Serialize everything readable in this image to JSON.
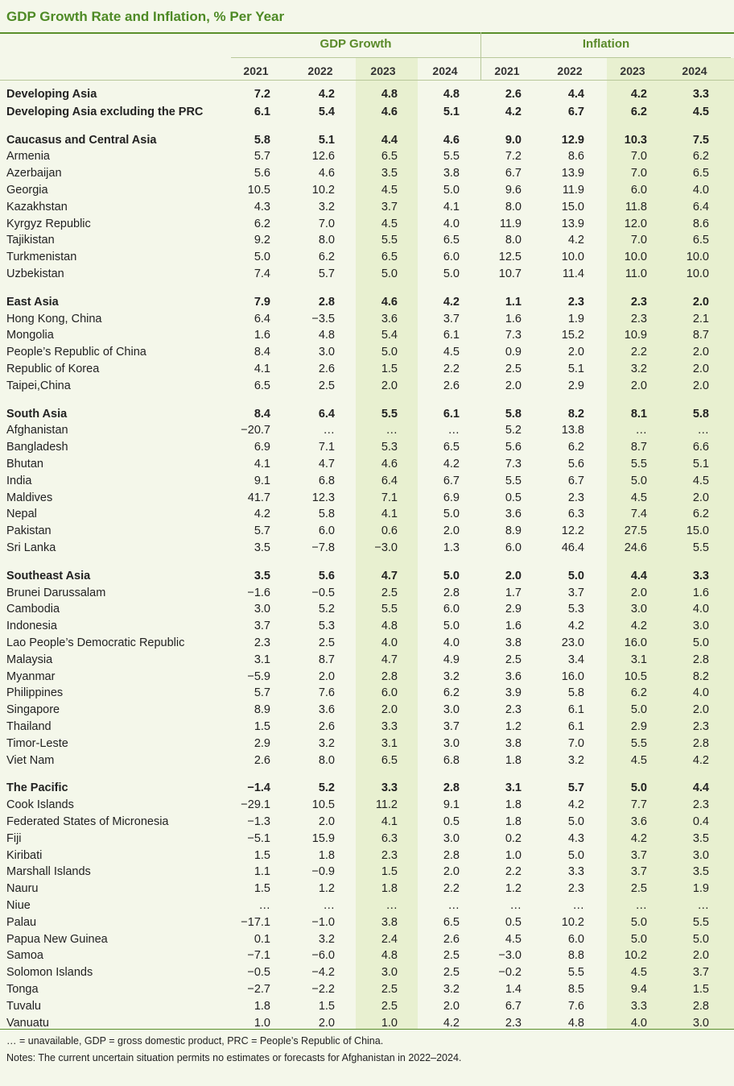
{
  "title": "GDP Growth Rate and Inflation, % Per Year",
  "groups": {
    "gdp": "GDP Growth",
    "inflation": "Inflation"
  },
  "years": [
    "2021",
    "2022",
    "2023",
    "2024",
    "2021",
    "2022",
    "2023",
    "2024"
  ],
  "rows": [
    {
      "name": "Developing Asia",
      "bold": true,
      "values": [
        "7.2",
        "4.2",
        "4.8",
        "4.8",
        "2.6",
        "4.4",
        "4.2",
        "3.3"
      ]
    },
    {
      "name": "Developing Asia excluding the PRC",
      "bold": true,
      "values": [
        "6.1",
        "5.4",
        "4.6",
        "5.1",
        "4.2",
        "6.7",
        "6.2",
        "4.5"
      ]
    },
    {
      "name": "Caucasus and Central Asia",
      "bold": true,
      "values": [
        "5.8",
        "5.1",
        "4.4",
        "4.6",
        "9.0",
        "12.9",
        "10.3",
        "7.5"
      ]
    },
    {
      "name": "Armenia",
      "values": [
        "5.7",
        "12.6",
        "6.5",
        "5.5",
        "7.2",
        "8.6",
        "7.0",
        "6.2"
      ]
    },
    {
      "name": "Azerbaijan",
      "values": [
        "5.6",
        "4.6",
        "3.5",
        "3.8",
        "6.7",
        "13.9",
        "7.0",
        "6.5"
      ]
    },
    {
      "name": "Georgia",
      "values": [
        "10.5",
        "10.2",
        "4.5",
        "5.0",
        "9.6",
        "11.9",
        "6.0",
        "4.0"
      ]
    },
    {
      "name": "Kazakhstan",
      "values": [
        "4.3",
        "3.2",
        "3.7",
        "4.1",
        "8.0",
        "15.0",
        "11.8",
        "6.4"
      ]
    },
    {
      "name": "Kyrgyz Republic",
      "values": [
        "6.2",
        "7.0",
        "4.5",
        "4.0",
        "11.9",
        "13.9",
        "12.0",
        "8.6"
      ]
    },
    {
      "name": "Tajikistan",
      "values": [
        "9.2",
        "8.0",
        "5.5",
        "6.5",
        "8.0",
        "4.2",
        "7.0",
        "6.5"
      ]
    },
    {
      "name": "Turkmenistan",
      "values": [
        "5.0",
        "6.2",
        "6.5",
        "6.0",
        "12.5",
        "10.0",
        "10.0",
        "10.0"
      ]
    },
    {
      "name": "Uzbekistan",
      "values": [
        "7.4",
        "5.7",
        "5.0",
        "5.0",
        "10.7",
        "11.4",
        "11.0",
        "10.0"
      ]
    },
    {
      "name": "East Asia",
      "bold": true,
      "values": [
        "7.9",
        "2.8",
        "4.6",
        "4.2",
        "1.1",
        "2.3",
        "2.3",
        "2.0"
      ]
    },
    {
      "name": "Hong Kong, China",
      "values": [
        "6.4",
        "−3.5",
        "3.6",
        "3.7",
        "1.6",
        "1.9",
        "2.3",
        "2.1"
      ]
    },
    {
      "name": "Mongolia",
      "values": [
        "1.6",
        "4.8",
        "5.4",
        "6.1",
        "7.3",
        "15.2",
        "10.9",
        "8.7"
      ]
    },
    {
      "name": "People’s Republic of China",
      "values": [
        "8.4",
        "3.0",
        "5.0",
        "4.5",
        "0.9",
        "2.0",
        "2.2",
        "2.0"
      ]
    },
    {
      "name": "Republic of Korea",
      "values": [
        "4.1",
        "2.6",
        "1.5",
        "2.2",
        "2.5",
        "5.1",
        "3.2",
        "2.0"
      ]
    },
    {
      "name": "Taipei,China",
      "values": [
        "6.5",
        "2.5",
        "2.0",
        "2.6",
        "2.0",
        "2.9",
        "2.0",
        "2.0"
      ]
    },
    {
      "name": "South Asia",
      "bold": true,
      "values": [
        "8.4",
        "6.4",
        "5.5",
        "6.1",
        "5.8",
        "8.2",
        "8.1",
        "5.8"
      ]
    },
    {
      "name": "Afghanistan",
      "values": [
        "−20.7",
        "…",
        "…",
        "…",
        "5.2",
        "13.8",
        "…",
        "…"
      ]
    },
    {
      "name": "Bangladesh",
      "values": [
        "6.9",
        "7.1",
        "5.3",
        "6.5",
        "5.6",
        "6.2",
        "8.7",
        "6.6"
      ]
    },
    {
      "name": "Bhutan",
      "values": [
        "4.1",
        "4.7",
        "4.6",
        "4.2",
        "7.3",
        "5.6",
        "5.5",
        "5.1"
      ]
    },
    {
      "name": "India",
      "values": [
        "9.1",
        "6.8",
        "6.4",
        "6.7",
        "5.5",
        "6.7",
        "5.0",
        "4.5"
      ]
    },
    {
      "name": "Maldives",
      "values": [
        "41.7",
        "12.3",
        "7.1",
        "6.9",
        "0.5",
        "2.3",
        "4.5",
        "2.0"
      ]
    },
    {
      "name": "Nepal",
      "values": [
        "4.2",
        "5.8",
        "4.1",
        "5.0",
        "3.6",
        "6.3",
        "7.4",
        "6.2"
      ]
    },
    {
      "name": "Pakistan",
      "values": [
        "5.7",
        "6.0",
        "0.6",
        "2.0",
        "8.9",
        "12.2",
        "27.5",
        "15.0"
      ]
    },
    {
      "name": "Sri Lanka",
      "values": [
        "3.5",
        "−7.8",
        "−3.0",
        "1.3",
        "6.0",
        "46.4",
        "24.6",
        "5.5"
      ]
    },
    {
      "name": "Southeast Asia",
      "bold": true,
      "values": [
        "3.5",
        "5.6",
        "4.7",
        "5.0",
        "2.0",
        "5.0",
        "4.4",
        "3.3"
      ]
    },
    {
      "name": "Brunei Darussalam",
      "values": [
        "−1.6",
        "−0.5",
        "2.5",
        "2.8",
        "1.7",
        "3.7",
        "2.0",
        "1.6"
      ]
    },
    {
      "name": "Cambodia",
      "values": [
        "3.0",
        "5.2",
        "5.5",
        "6.0",
        "2.9",
        "5.3",
        "3.0",
        "4.0"
      ]
    },
    {
      "name": "Indonesia",
      "values": [
        "3.7",
        "5.3",
        "4.8",
        "5.0",
        "1.6",
        "4.2",
        "4.2",
        "3.0"
      ]
    },
    {
      "name": "Lao People’s Democratic Republic",
      "values": [
        "2.3",
        "2.5",
        "4.0",
        "4.0",
        "3.8",
        "23.0",
        "16.0",
        "5.0"
      ]
    },
    {
      "name": "Malaysia",
      "values": [
        "3.1",
        "8.7",
        "4.7",
        "4.9",
        "2.5",
        "3.4",
        "3.1",
        "2.8"
      ]
    },
    {
      "name": "Myanmar",
      "values": [
        "−5.9",
        "2.0",
        "2.8",
        "3.2",
        "3.6",
        "16.0",
        "10.5",
        "8.2"
      ]
    },
    {
      "name": "Philippines",
      "values": [
        "5.7",
        "7.6",
        "6.0",
        "6.2",
        "3.9",
        "5.8",
        "6.2",
        "4.0"
      ]
    },
    {
      "name": "Singapore",
      "values": [
        "8.9",
        "3.6",
        "2.0",
        "3.0",
        "2.3",
        "6.1",
        "5.0",
        "2.0"
      ]
    },
    {
      "name": "Thailand",
      "values": [
        "1.5",
        "2.6",
        "3.3",
        "3.7",
        "1.2",
        "6.1",
        "2.9",
        "2.3"
      ]
    },
    {
      "name": "Timor-Leste",
      "values": [
        "2.9",
        "3.2",
        "3.1",
        "3.0",
        "3.8",
        "7.0",
        "5.5",
        "2.8"
      ]
    },
    {
      "name": "Viet Nam",
      "values": [
        "2.6",
        "8.0",
        "6.5",
        "6.8",
        "1.8",
        "3.2",
        "4.5",
        "4.2"
      ]
    },
    {
      "name": "The Pacific",
      "bold": true,
      "values": [
        "−1.4",
        "5.2",
        "3.3",
        "2.8",
        "3.1",
        "5.7",
        "5.0",
        "4.4"
      ]
    },
    {
      "name": "Cook Islands",
      "values": [
        "−29.1",
        "10.5",
        "11.2",
        "9.1",
        "1.8",
        "4.2",
        "7.7",
        "2.3"
      ]
    },
    {
      "name": "Federated States of Micronesia",
      "values": [
        "−1.3",
        "2.0",
        "4.1",
        "0.5",
        "1.8",
        "5.0",
        "3.6",
        "0.4"
      ]
    },
    {
      "name": "Fiji",
      "values": [
        "−5.1",
        "15.9",
        "6.3",
        "3.0",
        "0.2",
        "4.3",
        "4.2",
        "3.5"
      ]
    },
    {
      "name": "Kiribati",
      "values": [
        "1.5",
        "1.8",
        "2.3",
        "2.8",
        "1.0",
        "5.0",
        "3.7",
        "3.0"
      ]
    },
    {
      "name": "Marshall Islands",
      "values": [
        "1.1",
        "−0.9",
        "1.5",
        "2.0",
        "2.2",
        "3.3",
        "3.7",
        "3.5"
      ]
    },
    {
      "name": "Nauru",
      "values": [
        "1.5",
        "1.2",
        "1.8",
        "2.2",
        "1.2",
        "2.3",
        "2.5",
        "1.9"
      ]
    },
    {
      "name": "Niue",
      "values": [
        "…",
        "…",
        "…",
        "…",
        "…",
        "…",
        "…",
        "…"
      ]
    },
    {
      "name": "Palau",
      "values": [
        "−17.1",
        "−1.0",
        "3.8",
        "6.5",
        "0.5",
        "10.2",
        "5.0",
        "5.5"
      ]
    },
    {
      "name": "Papua New Guinea",
      "values": [
        "0.1",
        "3.2",
        "2.4",
        "2.6",
        "4.5",
        "6.0",
        "5.0",
        "5.0"
      ]
    },
    {
      "name": "Samoa",
      "values": [
        "−7.1",
        "−6.0",
        "4.8",
        "2.5",
        "−3.0",
        "8.8",
        "10.2",
        "2.0"
      ]
    },
    {
      "name": "Solomon Islands",
      "values": [
        "−0.5",
        "−4.2",
        "3.0",
        "2.5",
        "−0.2",
        "5.5",
        "4.5",
        "3.7"
      ]
    },
    {
      "name": "Tonga",
      "values": [
        "−2.7",
        "−2.2",
        "2.5",
        "3.2",
        "1.4",
        "8.5",
        "9.4",
        "1.5"
      ]
    },
    {
      "name": "Tuvalu",
      "values": [
        "1.8",
        "1.5",
        "2.5",
        "2.0",
        "6.7",
        "7.6",
        "3.3",
        "2.8"
      ]
    },
    {
      "name": "Vanuatu",
      "values": [
        "1.0",
        "2.0",
        "1.0",
        "4.2",
        "2.3",
        "4.8",
        "4.0",
        "3.0"
      ]
    }
  ],
  "footnotes": [
    "… = unavailable, GDP = gross domestic product, PRC = People’s Republic of China.",
    "Notes: The current uncertain situation permits no estimates or forecasts for Afghanistan in 2022–2024."
  ],
  "colors": {
    "accent": "#4e8a25",
    "background": "#f4f7ea",
    "band": "#e8f0d0"
  }
}
